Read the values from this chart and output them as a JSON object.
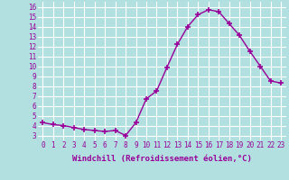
{
  "x": [
    0,
    1,
    2,
    3,
    4,
    5,
    6,
    7,
    8,
    9,
    10,
    11,
    12,
    13,
    14,
    15,
    16,
    17,
    18,
    19,
    20,
    21,
    22,
    23
  ],
  "y": [
    4.3,
    4.1,
    4.0,
    3.8,
    3.6,
    3.5,
    3.4,
    3.5,
    3.0,
    4.3,
    6.7,
    7.5,
    9.9,
    12.2,
    14.0,
    15.2,
    15.7,
    15.5,
    14.3,
    13.1,
    11.5,
    10.0,
    8.5,
    8.3
  ],
  "line_color": "#990099",
  "marker": "+",
  "marker_size": 4,
  "marker_linewidth": 1.2,
  "xlabel": "Windchill (Refroidissement éolien,°C)",
  "ylabel_ticks": [
    3,
    4,
    5,
    6,
    7,
    8,
    9,
    10,
    11,
    12,
    13,
    14,
    15,
    16
  ],
  "xtick_labels": [
    "0",
    "1",
    "2",
    "3",
    "4",
    "5",
    "6",
    "7",
    "8",
    "9",
    "10",
    "11",
    "12",
    "13",
    "14",
    "15",
    "16",
    "17",
    "18",
    "19",
    "20",
    "21",
    "22",
    "23"
  ],
  "ylim": [
    2.5,
    16.5
  ],
  "xlim": [
    -0.5,
    23.5
  ],
  "bg_color": "#b2e0e0",
  "grid_color": "#ffffff",
  "text_color": "#990099",
  "xlabel_fontsize": 6.5,
  "tick_fontsize": 5.5,
  "line_width": 1.0
}
